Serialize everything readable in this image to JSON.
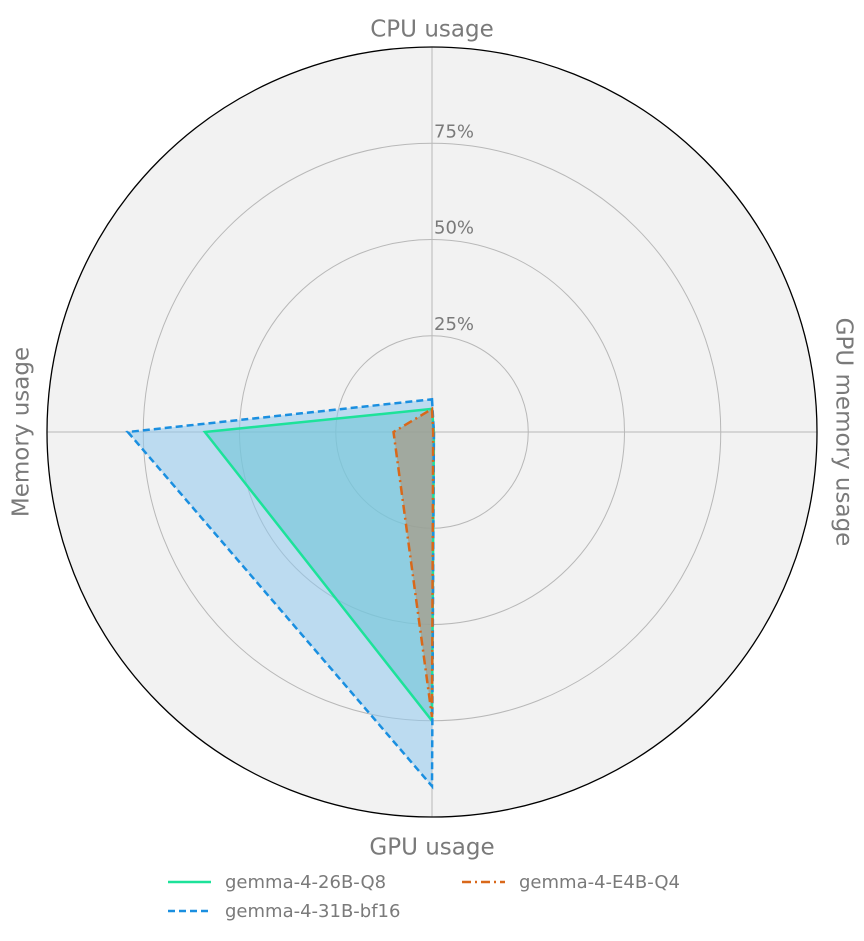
{
  "chart_data": {
    "type": "radar",
    "axes": [
      "CPU usage",
      "GPU memory usage",
      "GPU usage",
      "Memory usage"
    ],
    "rlim": [
      0,
      100
    ],
    "r_ticks": [
      25,
      50,
      75
    ],
    "r_tick_labels": [
      "25%",
      "50%",
      "75%"
    ],
    "grid": true,
    "legend_position": "bottom",
    "series": [
      {
        "name": "gemma-4-26B-Q8",
        "values": [
          6,
          0.5,
          75,
          59
        ],
        "color": "#1de29a",
        "fill": "#3cbfb4",
        "dash": "solid"
      },
      {
        "name": "gemma-4-31B-bf16",
        "values": [
          8.5,
          0.5,
          92,
          79
        ],
        "color": "#1a8fe0",
        "fill": "#90c8ee",
        "dash": "dashed"
      },
      {
        "name": "gemma-4-E4B-Q4",
        "values": [
          6,
          0.3,
          74,
          10
        ],
        "color": "#d9681a",
        "fill": "#b08a6a",
        "dash": "dashdot"
      }
    ]
  }
}
